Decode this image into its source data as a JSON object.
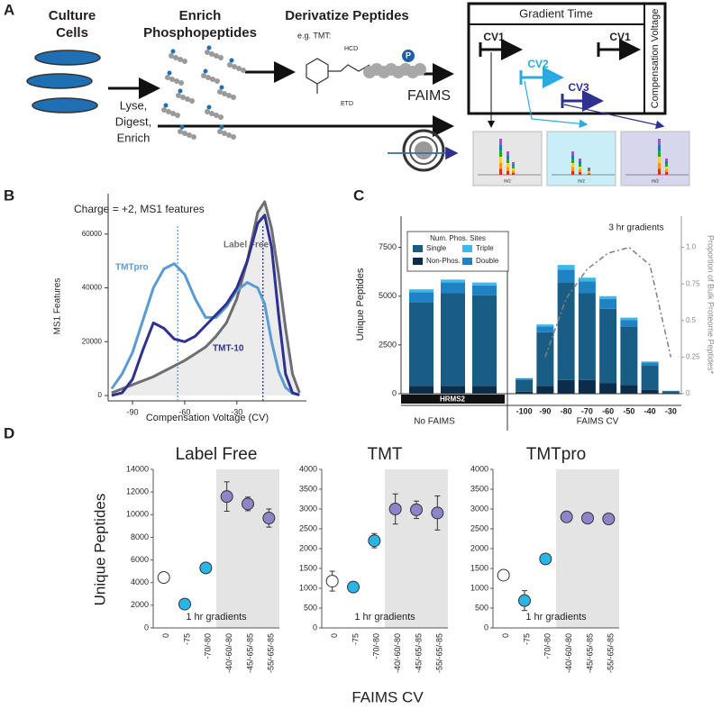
{
  "panel_a": {
    "label": "A",
    "culture": [
      "Culture",
      "Cells"
    ],
    "enrich": [
      "Enrich",
      "Phosphopeptides"
    ],
    "derivatize": "Derivatize Peptides",
    "lyse": [
      "Lyse,",
      "Digest,",
      "Enrich"
    ],
    "tmt_example": "e.g. TMT:",
    "hcd": "HCD",
    "etd": "ETD",
    "phospho": "P",
    "faims": "FAIMS",
    "gradient_time": "Gradient Time",
    "compensation_voltage": "Compensation Voltage",
    "cv": [
      "CV1",
      "CV2",
      "CV3",
      "CV1"
    ],
    "mz": [
      "m/z",
      "m/z",
      "m/z"
    ]
  },
  "panel_d": {
    "label": "D",
    "ylabel": "Unique Peptides",
    "xlabel": "FAIMS CV"
  },
  "chart_data": [
    {
      "type": "line",
      "panel": "B",
      "title": "Charge = +2, MS1 features",
      "xlabel": "Compensation Voltage (CV)",
      "ylabel": "MS1 Features",
      "x": [
        -102,
        -96,
        -90,
        -84,
        -78,
        -72,
        -66,
        -60,
        -54,
        -48,
        -42,
        -36,
        -30,
        -24,
        -18,
        -14,
        -10,
        -6,
        -2,
        2,
        6
      ],
      "series": [
        {
          "name": "Label Free",
          "color": "#6d6e71",
          "fill": "#ececec",
          "values": [
            1000,
            2500,
            4000,
            5500,
            7000,
            9000,
            11000,
            13000,
            15500,
            18000,
            22000,
            27000,
            36000,
            50000,
            68000,
            72000,
            62000,
            45000,
            25000,
            8000,
            1000
          ]
        },
        {
          "name": "TMTpro",
          "color": "#5b9bd5",
          "values": [
            2500,
            8000,
            16000,
            28000,
            40000,
            47000,
            49000,
            45000,
            36000,
            29000,
            29000,
            33000,
            39000,
            42000,
            40000,
            34000,
            20000,
            9000,
            3000,
            800,
            300
          ]
        },
        {
          "name": "TMT-10",
          "color": "#2e3192",
          "values": [
            0,
            1000,
            6000,
            17000,
            27000,
            25000,
            21000,
            20000,
            22000,
            26000,
            30000,
            34000,
            40000,
            50000,
            64000,
            67000,
            55000,
            30000,
            8000,
            1000,
            200
          ]
        }
      ],
      "xlim": [
        -104,
        10
      ],
      "xticks": [
        -90,
        -60,
        -30
      ],
      "ylim": [
        -2000,
        75000
      ],
      "yticks": [
        0,
        20000,
        40000,
        60000
      ],
      "reference_lines": [
        {
          "x": -64,
          "color": "#5b9bd5"
        },
        {
          "x": -15,
          "color": "#2e3192"
        }
      ]
    },
    {
      "type": "bar",
      "stacked": true,
      "panel": "C",
      "ylabel": "Unique Peptides",
      "y2label": "Proportion of Bulk Proteome Peptides*",
      "annotation": "3 hr gradients",
      "legend_title": "Num. Phos. Sites",
      "groups": [
        "No FAIMS",
        "FAIMS CV"
      ],
      "group_band": "HRMS2",
      "categories": [
        null,
        null,
        null,
        "-100",
        "-90",
        "-80",
        "-70",
        "-60",
        "-50",
        "-40",
        "-30"
      ],
      "series": [
        {
          "name": "Non-Phos.",
          "color": "#0b2c4a",
          "values": [
            400,
            400,
            400,
            100,
            400,
            700,
            700,
            550,
            450,
            200,
            20
          ]
        },
        {
          "name": "Single",
          "color": "#195d85",
          "values": [
            4300,
            4750,
            4650,
            600,
            2750,
            5000,
            4450,
            3800,
            3000,
            1250,
            110
          ]
        },
        {
          "name": "Double",
          "color": "#1f83c3",
          "values": [
            500,
            550,
            500,
            80,
            300,
            650,
            600,
            500,
            330,
            150,
            15
          ]
        },
        {
          "name": "Triple",
          "color": "#3cb8ec",
          "values": [
            150,
            150,
            150,
            20,
            100,
            250,
            200,
            150,
            120,
            50,
            5
          ]
        },
        {
          "axis": "y2",
          "type": "line",
          "dash": true,
          "color": "#808080",
          "values": [
            null,
            null,
            null,
            null,
            0.25,
            0.65,
            0.85,
            0.96,
            1.0,
            0.88,
            0.25
          ]
        }
      ],
      "ylim": [
        0,
        9100
      ],
      "yticks": [
        0,
        2500,
        5000,
        7500
      ],
      "y2lim": [
        0,
        1.213
      ],
      "y2ticks": [
        0,
        0.25,
        0.5,
        0.75,
        {
          "value": 1,
          "label": "1.0"
        }
      ]
    },
    {
      "type": "scatter",
      "title": "Label Free",
      "annotation": "1 hr gradients",
      "categories": [
        "0",
        "-75",
        "-70/-80",
        "-40/-60/-80",
        "-45/-65/-85",
        "-55/-65/-85"
      ],
      "values": [
        4450,
        2100,
        5300,
        11600,
        10950,
        9700
      ],
      "errors": [
        350,
        150,
        250,
        1300,
        600,
        800
      ],
      "colors": [
        "#ffffff",
        "#29b6e6",
        "#29b6e6",
        "#8c86c9",
        "#8c86c9",
        "#8c86c9"
      ],
      "shade": {
        "from": "-40/-60/-80",
        "color": "#e4e4e4"
      },
      "ylim": [
        0,
        14000
      ],
      "yticks": [
        0,
        2000,
        4000,
        6000,
        8000,
        10000,
        12000,
        14000
      ]
    },
    {
      "type": "scatter",
      "title": "TMT",
      "annotation": "1 hr gradients",
      "categories": [
        "0",
        "-75",
        "-70/-80",
        "-40/-60/-80",
        "-45/-65/-85",
        "-55/-65/-85"
      ],
      "values": [
        1180,
        1030,
        2200,
        3000,
        2980,
        2900
      ],
      "errors": [
        250,
        80,
        180,
        380,
        220,
        430
      ],
      "colors": [
        "#ffffff",
        "#29b6e6",
        "#29b6e6",
        "#8c86c9",
        "#8c86c9",
        "#8c86c9"
      ],
      "shade": {
        "from": "-40/-60/-80",
        "color": "#e4e4e4"
      },
      "ylim": [
        0,
        4000
      ],
      "yticks": [
        0,
        500,
        1000,
        1500,
        2000,
        2500,
        3000,
        3500,
        4000
      ]
    },
    {
      "type": "scatter",
      "title": "TMTpro",
      "annotation": "1 hr gradients",
      "categories": [
        "0",
        "-75",
        "-70/-80",
        "-40/-60/-80",
        "-45/-65/-85",
        "-55/-65/-85"
      ],
      "values": [
        1330,
        690,
        1740,
        2800,
        2770,
        2750
      ],
      "errors": [
        60,
        250,
        80,
        60,
        60,
        110
      ],
      "colors": [
        "#ffffff",
        "#29b6e6",
        "#29b6e6",
        "#8c86c9",
        "#8c86c9",
        "#8c86c9"
      ],
      "shade": {
        "from": "-40/-60/-80",
        "color": "#e4e4e4"
      },
      "ylim": [
        0,
        4000
      ],
      "yticks": [
        0,
        500,
        1000,
        1500,
        2000,
        2500,
        3000,
        3500,
        4000
      ]
    }
  ]
}
